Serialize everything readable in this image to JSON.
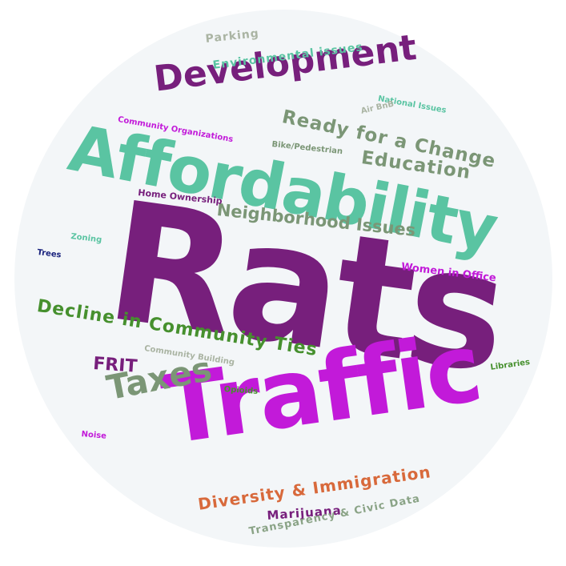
{
  "word_cloud": {
    "background_color": "#f3f6f8",
    "words": [
      {
        "key": "rats",
        "text": "Rats",
        "color": "#771f7c"
      },
      {
        "key": "traffic",
        "text": "Traffic",
        "color": "#c21ad9"
      },
      {
        "key": "afford",
        "text": "Affordability",
        "color": "#5ac4a2"
      },
      {
        "key": "dev",
        "text": "Development",
        "color": "#771f7c"
      },
      {
        "key": "ready",
        "text": "Ready for a Change",
        "color": "#7b9676"
      },
      {
        "key": "edu",
        "text": "Education",
        "color": "#7b9676"
      },
      {
        "key": "neigh",
        "text": "Neighborhood Issues",
        "color": "#7b9676"
      },
      {
        "key": "decline",
        "text": "Decline in Community Ties",
        "color": "#46902e"
      },
      {
        "key": "taxes",
        "text": "Taxes",
        "color": "#7b9676"
      },
      {
        "key": "frit",
        "text": "FRIT",
        "color": "#771f7c"
      },
      {
        "key": "diversity",
        "text": "Diversity & Immigration",
        "color": "#d8693b"
      },
      {
        "key": "marijuana",
        "text": "Marijuana",
        "color": "#771f7c"
      },
      {
        "key": "transp",
        "text": "Transparency & Civic Data",
        "color": "#8aa386"
      },
      {
        "key": "women",
        "text": "Women in Office",
        "color": "#c21ad9"
      },
      {
        "key": "env",
        "text": "Environmental issues",
        "color": "#5ac4a2"
      },
      {
        "key": "parking",
        "text": "Parking",
        "color": "#aab4a3"
      },
      {
        "key": "national",
        "text": "National Issues",
        "color": "#5ac4a2"
      },
      {
        "key": "airbnb",
        "text": "Air BnB",
        "color": "#aab4a3"
      },
      {
        "key": "commorg",
        "text": "Community Organizations",
        "color": "#c21ad9"
      },
      {
        "key": "bike",
        "text": "Bike/Pedestrian",
        "color": "#7b9676"
      },
      {
        "key": "homeown",
        "text": "Home Ownership",
        "color": "#771f7c"
      },
      {
        "key": "zoning",
        "text": "Zoning",
        "color": "#5ac4a2"
      },
      {
        "key": "trees",
        "text": "Trees",
        "color": "#1a237e"
      },
      {
        "key": "commbuild",
        "text": "Community Building",
        "color": "#aab4a3"
      },
      {
        "key": "opioids",
        "text": "Opioids",
        "color": "#46902e"
      },
      {
        "key": "libraries",
        "text": "Libraries",
        "color": "#46902e"
      },
      {
        "key": "noise",
        "text": "Noise",
        "color": "#c21ad9"
      }
    ]
  }
}
